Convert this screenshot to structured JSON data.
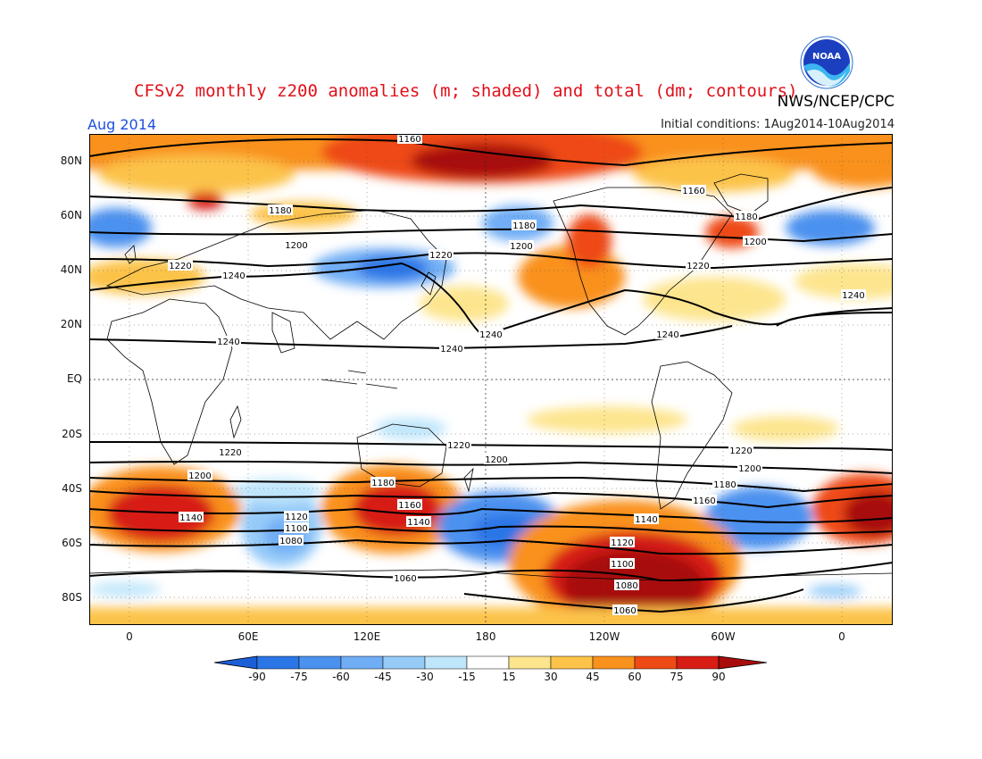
{
  "title": "CFSv2 monthly z200 anomalies (m; shaded) and total (dm; contours)",
  "organization": "NWS/NCEP/CPC",
  "logo_text": "NOAA",
  "month_label": "Aug 2014",
  "initial_conditions": "Initial conditions: 1Aug2014-10Aug2014",
  "map": {
    "lat_labels": [
      "80N",
      "60N",
      "40N",
      "20N",
      "EQ",
      "20S",
      "40S",
      "60S",
      "80S"
    ],
    "lon_labels": [
      "0",
      "60E",
      "120E",
      "180",
      "120W",
      "60W",
      "0"
    ],
    "contour_labels": [
      "1160",
      "1160",
      "1180",
      "1180",
      "1180",
      "1200",
      "1200",
      "1200",
      "1220",
      "1220",
      "1220",
      "1240",
      "1240",
      "1240",
      "1240",
      "1240",
      "1240",
      "1220",
      "1220",
      "1220",
      "1200",
      "1200",
      "1200",
      "1180",
      "1180",
      "1160",
      "1140",
      "1160",
      "1140",
      "1140",
      "1120",
      "1100",
      "1080",
      "1060",
      "1120",
      "1100",
      "1080",
      "1060"
    ]
  },
  "colorbar": {
    "labels": [
      "-90",
      "-75",
      "-60",
      "-45",
      "-30",
      "-15",
      "15",
      "30",
      "45",
      "60",
      "75",
      "90"
    ],
    "colors": [
      "#1a5fd6",
      "#2b76e6",
      "#4b91ef",
      "#6fadf5",
      "#96cbf8",
      "#bfe6fb",
      "#ffffff",
      "#fde58e",
      "#fcc348",
      "#f9911d",
      "#ee4a16",
      "#d71d14",
      "#a80c0c"
    ]
  }
}
